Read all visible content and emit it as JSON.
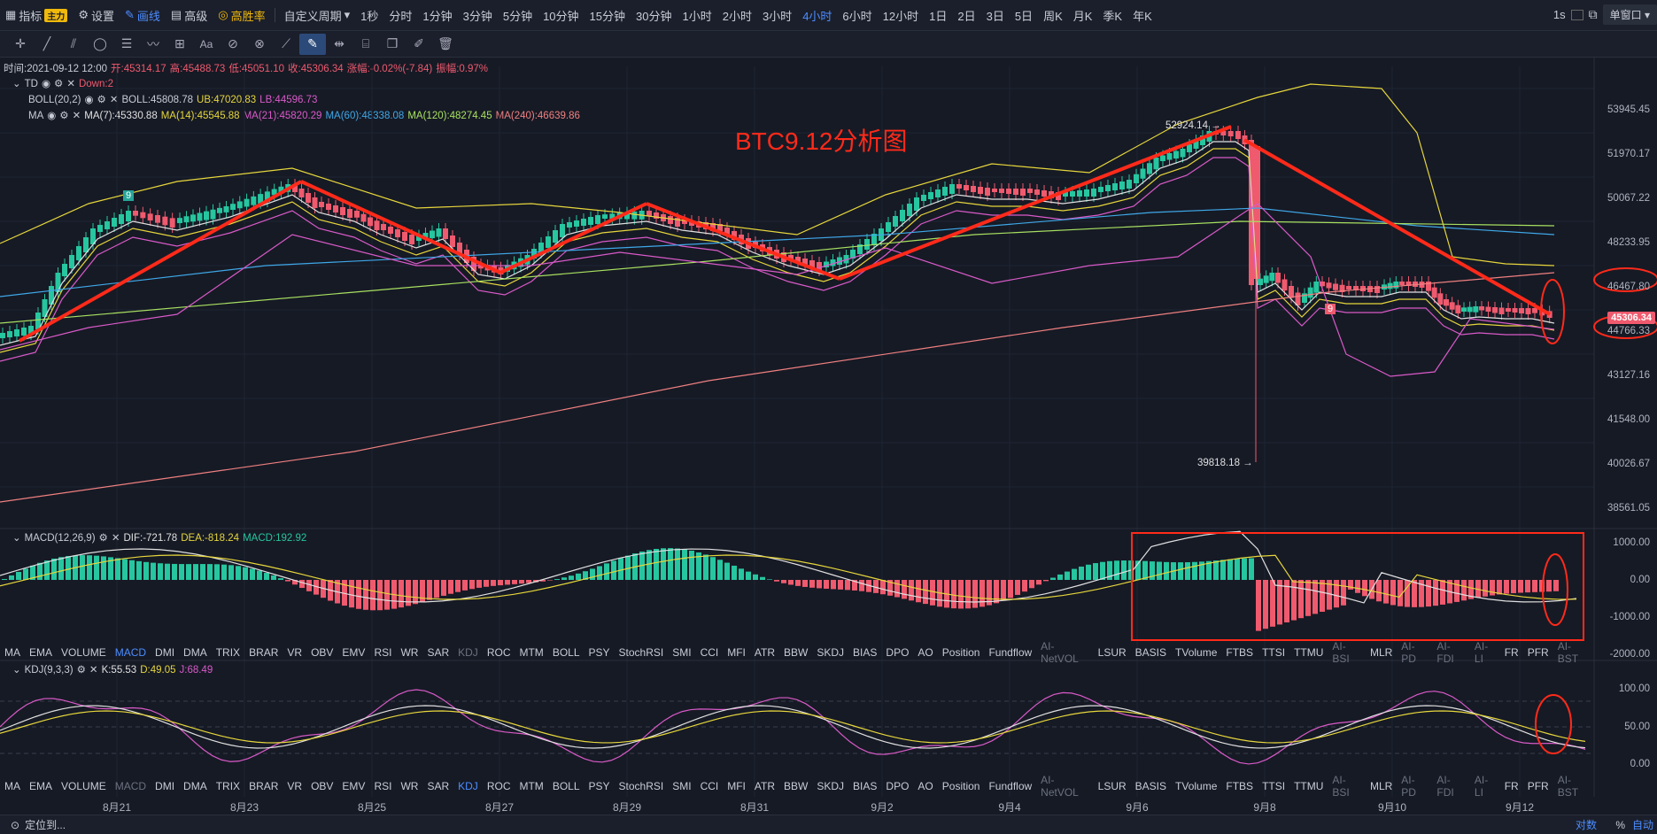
{
  "topbar": {
    "left": [
      {
        "icon": "grid-icon",
        "label": "指标",
        "badge": "主力"
      },
      {
        "icon": "gear-icon",
        "label": "设置"
      },
      {
        "icon": "pen-icon",
        "label": "画线",
        "active": true
      },
      {
        "icon": "chart-icon",
        "label": "高级"
      },
      {
        "icon": "coin-icon",
        "label": "高胜率",
        "gold": true
      }
    ],
    "custom_period": "自定义周期",
    "periods": [
      "1秒",
      "分时",
      "1分钟",
      "3分钟",
      "5分钟",
      "10分钟",
      "15分钟",
      "30分钟",
      "1小时",
      "2小时",
      "3小时",
      "4小时",
      "6小时",
      "12小时",
      "1日",
      "2日",
      "3日",
      "5日",
      "周K",
      "月K",
      "季K",
      "年K"
    ],
    "active_period": "4小时",
    "right_interval": "1s",
    "window_mode": "单窗口"
  },
  "legend": {
    "time_label": "时间:2021-09-12 12:00",
    "open": "开:45314.17",
    "high": "高:45488.73",
    "low": "低:45051.10",
    "close": "收:45306.34",
    "change": "涨幅:-0.02%(-7.84)",
    "amplitude": "振幅:0.97%",
    "td": "TD",
    "td_down": "Down:2",
    "boll_name": "BOLL(20,2)",
    "boll": "BOLL:45808.78",
    "boll_ub": "UB:47020.83",
    "boll_lb": "LB:44596.73",
    "ma_name": "MA",
    "ma7": "MA(7):45330.88",
    "ma14": "MA(14):45545.88",
    "ma21": "MA(21):45820.29",
    "ma60": "MA(60):48338.08",
    "ma120": "MA(120):48274.45",
    "ma240": "MA(240):46639.86"
  },
  "annotation_title": "BTC9.12分析图",
  "price_axis": [
    "53945.45",
    "51970.17",
    "50067.22",
    "48233.95",
    "46467.80",
    "45306.34",
    "44766.33",
    "43127.16",
    "41548.00",
    "40026.67",
    "38561.05"
  ],
  "markers": {
    "high": "52924.14 →",
    "low": "39818.18 →",
    "td_count": "9",
    "td_count2": "9"
  },
  "macd": {
    "name": "MACD(12,26,9)",
    "dif": "DIF:-721.78",
    "dea": "DEA:-818.24",
    "macd": "MACD:192.92",
    "axis": [
      "1000.00",
      "0.00",
      "-1000.00",
      "-2000.00"
    ]
  },
  "kdj": {
    "name": "KDJ(9,3,3)",
    "k": "K:55.53",
    "d": "D:49.05",
    "j": "J:68.49",
    "axis": [
      "100.00",
      "50.00",
      "0.00"
    ]
  },
  "indicators": [
    "MA",
    "EMA",
    "VOLUME",
    "MACD",
    "DMI",
    "DMA",
    "TRIX",
    "BRAR",
    "VR",
    "OBV",
    "EMV",
    "RSI",
    "WR",
    "SAR",
    "KDJ",
    "ROC",
    "MTM",
    "BOLL",
    "PSY",
    "StochRSI",
    "SMI",
    "CCI",
    "MFI",
    "ATR",
    "BBW",
    "SKDJ",
    "BIAS",
    "DPO",
    "AO",
    "Position",
    "Fundflow",
    "AI-NetVOL",
    "LSUR",
    "BASIS",
    "TVolume",
    "FTBS",
    "TTSI",
    "TTMU",
    "AI-BSI",
    "MLR",
    "AI-PD",
    "AI-FDI",
    "AI-LI",
    "FR",
    "PFR",
    "AI-BST"
  ],
  "dim_indicators": [
    "AI-NetVOL",
    "AI-BSI",
    "AI-PD",
    "AI-FDI",
    "AI-LI",
    "AI-BST"
  ],
  "dates": [
    "8月21",
    "8月23",
    "8月25",
    "8月27",
    "8月29",
    "8月31",
    "9月2",
    "9月4",
    "9月6",
    "9月8",
    "9月10",
    "9月12"
  ],
  "bottom": {
    "locate": "定位到...",
    "log": "对数",
    "pct": "%",
    "auto": "自动"
  },
  "colors": {
    "up": "#26c6a0",
    "down": "#ef5a6e",
    "accent": "#4c8dff",
    "red": "#ff2a1a"
  }
}
